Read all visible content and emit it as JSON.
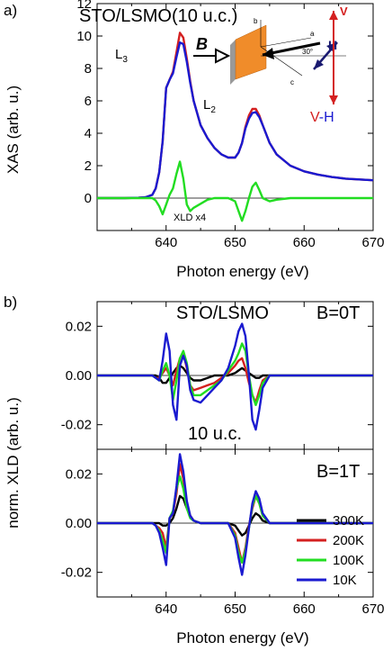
{
  "figure": {
    "panels": [
      {
        "id": "a",
        "panel_label": "a)",
        "title": "STO/LSMO(10 u.c.)",
        "annotations": {
          "l3": "L",
          "l3_sub": "3",
          "l2": "L",
          "l2_sub": "2",
          "xld_scale": "XLD x4"
        },
        "inset": {
          "field_label": "B",
          "field_label_h": "H",
          "axis_a": "a",
          "axis_b": "b",
          "axis_c": "c",
          "angle": "30°",
          "pol_v": "V",
          "pol_vh_v": "V",
          "pol_vh_dash": "-",
          "pol_vh_h": "H"
        }
      },
      {
        "id": "b",
        "panel_label": "b)",
        "title": "STO/LSMO",
        "sub_top_label": "B=0T",
        "middle_label": "10 u.c.",
        "sub_bottom_label": "B=1T"
      }
    ]
  },
  "chart_data": [
    {
      "type": "line",
      "xlabel": "Photon energy (eV)",
      "ylabel": "XAS (arb. u.)",
      "xlim": [
        630,
        670
      ],
      "ylim": [
        -2,
        12
      ],
      "xticks": [
        640,
        650,
        660,
        670
      ],
      "yticks": [
        0,
        2,
        4,
        6,
        8,
        10,
        12
      ],
      "x": [
        630,
        632,
        634,
        636,
        637,
        638,
        638.5,
        639,
        639.5,
        640,
        640.5,
        641,
        641.5,
        642,
        642.5,
        643,
        643.5,
        644,
        645,
        646,
        647,
        648,
        649,
        650,
        650.5,
        651,
        651.5,
        652,
        652.5,
        653,
        653.5,
        654,
        655,
        656,
        658,
        660,
        662,
        664,
        666,
        668,
        670
      ],
      "series": [
        {
          "color": "#d42020",
          "values": [
            0,
            0,
            0,
            0.02,
            0.05,
            0.2,
            0.6,
            1.6,
            3.5,
            6.8,
            7.3,
            7.8,
            9.0,
            10.2,
            9.9,
            8.6,
            7.2,
            6.0,
            4.5,
            3.7,
            3.1,
            2.7,
            2.5,
            2.5,
            2.8,
            3.4,
            4.4,
            5.1,
            5.5,
            5.5,
            5.1,
            4.5,
            3.4,
            2.7,
            2.0,
            1.65,
            1.45,
            1.3,
            1.2,
            1.15,
            1.1
          ]
        },
        {
          "color": "#1a1ad0",
          "values": [
            0,
            0,
            0,
            0.02,
            0.05,
            0.2,
            0.6,
            1.6,
            3.5,
            6.8,
            7.3,
            7.7,
            8.7,
            9.6,
            9.5,
            8.4,
            7.1,
            6.0,
            4.5,
            3.7,
            3.1,
            2.7,
            2.5,
            2.5,
            2.8,
            3.4,
            4.3,
            4.9,
            5.25,
            5.3,
            5.0,
            4.5,
            3.4,
            2.7,
            2.0,
            1.65,
            1.45,
            1.3,
            1.2,
            1.15,
            1.1
          ]
        },
        {
          "color": "#22dd22",
          "values": [
            0,
            0,
            0,
            0,
            0,
            0,
            -0.15,
            -0.5,
            -1.0,
            -0.4,
            0.2,
            0.6,
            1.5,
            2.25,
            1.2,
            -0.4,
            -0.8,
            -0.6,
            -0.35,
            -0.1,
            0,
            0,
            0,
            -0.2,
            -0.8,
            -1.4,
            -0.8,
            0,
            0.7,
            0.95,
            0.5,
            0,
            -0.2,
            -0.1,
            0,
            0,
            0,
            0,
            0,
            0,
            0
          ]
        }
      ],
      "reference_lines": [
        {
          "y": 0,
          "color": "#000000"
        }
      ]
    },
    {
      "type": "line",
      "xlabel": "",
      "ylabel": "norm. XLD (arb. u.)",
      "xlim": [
        630,
        670
      ],
      "ylim": [
        -0.03,
        0.03
      ],
      "yticks": [
        -0.02,
        0.0,
        0.02
      ],
      "ytick_labels": [
        "-0.02",
        "0.00",
        "0.02"
      ],
      "x": [
        630,
        632,
        634,
        636,
        637,
        638,
        638.5,
        639,
        639.5,
        640,
        640.5,
        641,
        641.5,
        642,
        642.5,
        643,
        643.5,
        644,
        645,
        646,
        647,
        648,
        649,
        650,
        650.5,
        651,
        651.5,
        652,
        652.5,
        653,
        653.5,
        654,
        655,
        656,
        658,
        660,
        662,
        664,
        666,
        668,
        670
      ],
      "series": [
        {
          "name": "300K",
          "color": "#000000",
          "values": [
            0,
            0,
            0,
            0,
            0,
            0,
            0,
            -0.001,
            -0.003,
            -0.003,
            -0.001,
            0.001,
            0.003,
            0.004,
            0.003,
            0.001,
            -0.001,
            -0.002,
            -0.002,
            -0.001,
            0,
            0,
            0,
            0.001,
            0.002,
            0.003,
            0.002,
            0.001,
            0,
            -0.001,
            -0.001,
            0,
            0,
            0,
            0,
            0,
            0,
            0,
            0,
            0,
            0
          ]
        },
        {
          "name": "200K",
          "color": "#d42020",
          "values": [
            0,
            0,
            0,
            0,
            0,
            0,
            -0.001,
            -0.001,
            0.001,
            0.003,
            0.0,
            -0.004,
            0.002,
            0.007,
            0.009,
            0.003,
            -0.004,
            -0.006,
            -0.005,
            -0.004,
            -0.003,
            -0.001,
            0.001,
            0.004,
            0.006,
            0.007,
            0.003,
            -0.003,
            -0.008,
            -0.011,
            -0.006,
            -0.002,
            0,
            0,
            0,
            0,
            0,
            0,
            0,
            0,
            0
          ]
        },
        {
          "name": "100K",
          "color": "#22dd22",
          "values": [
            0,
            0,
            0,
            0,
            0,
            0,
            -0.001,
            -0.002,
            0.002,
            0.005,
            0.0,
            -0.01,
            -0.002,
            0.007,
            0.01,
            0.005,
            -0.004,
            -0.008,
            -0.008,
            -0.006,
            -0.004,
            -0.002,
            0.002,
            0.006,
            0.009,
            0.013,
            0.01,
            0.0,
            -0.008,
            -0.012,
            -0.008,
            -0.003,
            0,
            0,
            0,
            0,
            0,
            0,
            0,
            0,
            0
          ]
        },
        {
          "name": "10K",
          "color": "#1a1ad0",
          "values": [
            0,
            0,
            0,
            0,
            0,
            0,
            -0.001,
            -0.002,
            0.006,
            0.017,
            0.01,
            -0.012,
            -0.018,
            0.004,
            0.008,
            0.004,
            -0.006,
            -0.01,
            -0.011,
            -0.008,
            -0.005,
            -0.002,
            0.003,
            0.012,
            0.018,
            0.021,
            0.016,
            0.0,
            -0.018,
            -0.022,
            -0.014,
            -0.005,
            0,
            0,
            0,
            0,
            0,
            0,
            0,
            0,
            0
          ]
        }
      ],
      "reference_lines": [
        {
          "y": 0,
          "color": "#000000"
        }
      ]
    },
    {
      "type": "line",
      "xlabel": "Photon energy (eV)",
      "ylabel": "norm. XLD (arb. u.)",
      "xlim": [
        630,
        670
      ],
      "ylim": [
        -0.03,
        0.03
      ],
      "xticks": [
        640,
        650,
        660,
        670
      ],
      "yticks": [
        -0.02,
        0.0,
        0.02
      ],
      "ytick_labels": [
        "-0.02",
        "0.00",
        "0.02"
      ],
      "legend_position": "bottom-right",
      "x": [
        630,
        632,
        634,
        636,
        637,
        638,
        638.5,
        639,
        639.5,
        640,
        640.5,
        641,
        641.5,
        642,
        642.5,
        643,
        643.5,
        644,
        645,
        646,
        647,
        648,
        649,
        650,
        650.5,
        651,
        651.5,
        652,
        652.5,
        653,
        653.5,
        654,
        655,
        656,
        658,
        660,
        662,
        664,
        666,
        668,
        670
      ],
      "series": [
        {
          "name": "300K",
          "color": "#000000",
          "values": [
            0,
            0,
            0,
            0,
            0,
            0,
            0,
            0,
            -0.001,
            -0.001,
            0.0,
            0.002,
            0.006,
            0.011,
            0.01,
            0.006,
            0.003,
            0.001,
            0.0,
            0,
            0,
            0,
            0,
            -0.001,
            -0.003,
            -0.005,
            -0.004,
            -0.001,
            0.002,
            0.004,
            0.003,
            0.001,
            0,
            0,
            0,
            0,
            0,
            0,
            0,
            0,
            0
          ]
        },
        {
          "name": "200K",
          "color": "#d42020",
          "values": [
            0,
            0,
            0,
            0,
            0,
            0,
            -0.001,
            -0.002,
            -0.004,
            -0.01,
            0.002,
            0.004,
            0.012,
            0.024,
            0.018,
            0.008,
            0.003,
            0.001,
            0.0,
            0,
            0,
            0,
            0,
            -0.004,
            -0.01,
            -0.016,
            -0.01,
            -0.001,
            0.006,
            0.011,
            0.008,
            0.003,
            0,
            0,
            0,
            0,
            0,
            0,
            0,
            0,
            0
          ]
        },
        {
          "name": "100K",
          "color": "#22dd22",
          "values": [
            0,
            0,
            0,
            0,
            0,
            0,
            -0.001,
            -0.003,
            -0.007,
            -0.012,
            0.002,
            0.005,
            0.014,
            0.019,
            0.014,
            0.006,
            0.002,
            0.001,
            0.0,
            0,
            0,
            0,
            0,
            -0.005,
            -0.012,
            -0.016,
            -0.011,
            -0.002,
            0.007,
            0.011,
            0.008,
            0.003,
            0,
            0,
            0,
            0,
            0,
            0,
            0,
            0,
            0
          ]
        },
        {
          "name": "10K",
          "color": "#1a1ad0",
          "values": [
            0,
            0,
            0,
            0,
            0,
            0,
            -0.001,
            -0.004,
            -0.01,
            -0.017,
            0.002,
            0.004,
            0.015,
            0.028,
            0.021,
            0.009,
            0.003,
            0.001,
            0.0,
            0,
            0,
            0,
            0,
            -0.006,
            -0.014,
            -0.021,
            -0.013,
            -0.002,
            0.008,
            0.013,
            0.01,
            0.004,
            0,
            0,
            0,
            0,
            0,
            0,
            0,
            0,
            0
          ]
        }
      ],
      "reference_lines": [
        {
          "y": 0,
          "color": "#000000"
        }
      ]
    }
  ]
}
